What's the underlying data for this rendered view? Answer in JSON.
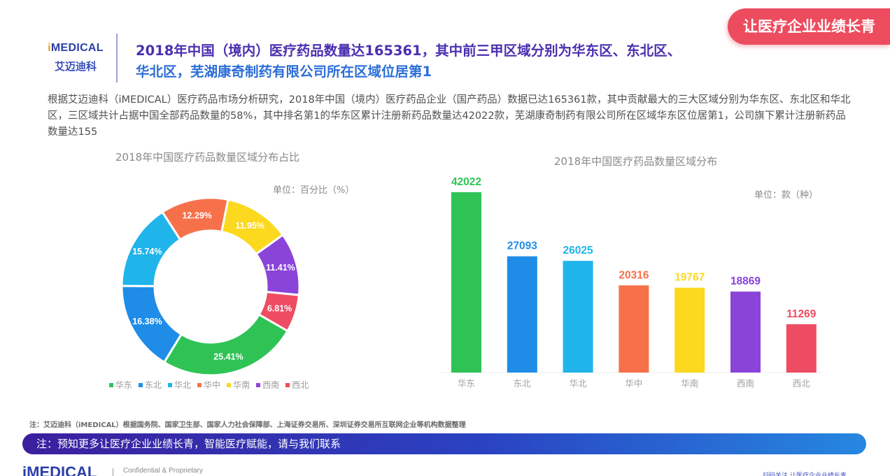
{
  "tag": "让医疗企业业绩长青",
  "logo": {
    "en_i": "i",
    "en_rest": "MEDICAL",
    "cn": "艾迈迪科"
  },
  "headline": {
    "line1": "2018年中国（境内）医疗药品数量达165361，其中前三甲区域分别为华东区、东北区、",
    "line2": "华北区，芜湖康奇制药有限公司所在区域位居第1"
  },
  "intro": "根据艾迈迪科（iMEDICAL）医疗药品市场分析研究，2018年中国（境内）医疗药品企业（国产药品）数据已达165361款，其中贡献最大的三大区域分别为华东区、东北区和华北区，三区域共计占据中国全部药品数量的58%，其中排名第1的华东区累计注册新药品数量达42022款，芜湖康奇制药有限公司所在区域华东区位居第1，公司旗下累计注册新药品数量达155",
  "footnote": "注：艾迈迪科（iMEDICAL）根据国务院、国家卫生部、国家人力社会保障部、上海证券交易所、深圳证券交易所互联网企业等机构数据整理",
  "banner": "注：预知更多让医疗企业业绩长青，智能医疗赋能，请与我们联系",
  "footer": {
    "logo": "iMEDICAL",
    "confidential": "Confidential & Proprietary",
    "right_text": "扫码关注 让医疗企业业绩长青"
  },
  "colors": {
    "华东": "#2fc356",
    "东北": "#1f8de8",
    "华北": "#1fb4ea",
    "华中": "#f6714a",
    "华南": "#fcd81e",
    "西南": "#8a44d8",
    "西北": "#ee4c63"
  },
  "chart_data": [
    {
      "type": "pie",
      "style": "donut",
      "title": "2018年中国医疗药品数量区域分布占比",
      "unit": "单位：百分比（%）",
      "legend_placement": "bottom",
      "legend": [
        "华东",
        "东北",
        "华北",
        "华中",
        "华南",
        "西南",
        "西北"
      ],
      "slices": [
        {
          "label": "华东",
          "value": 25.41,
          "display": "25.41%"
        },
        {
          "label": "东北",
          "value": 16.38,
          "display": "16.38%"
        },
        {
          "label": "华北",
          "value": 15.74,
          "display": "15.74%"
        },
        {
          "label": "华中",
          "value": 12.29,
          "display": "12.29%"
        },
        {
          "label": "华南",
          "value": 11.95,
          "display": "11.95%"
        },
        {
          "label": "西南",
          "value": 11.41,
          "display": "11.41%"
        },
        {
          "label": "西北",
          "value": 6.81,
          "display": "6.81%"
        }
      ]
    },
    {
      "type": "bar",
      "title": "2018年中国医疗药品数量区域分布",
      "unit": "单位：款（种）",
      "categories": [
        "华东",
        "东北",
        "华北",
        "华中",
        "华南",
        "西南",
        "西北"
      ],
      "values": [
        42022,
        27093,
        26025,
        20316,
        19767,
        18869,
        11269
      ],
      "ylim": [
        0,
        42022
      ],
      "grid": false
    }
  ]
}
